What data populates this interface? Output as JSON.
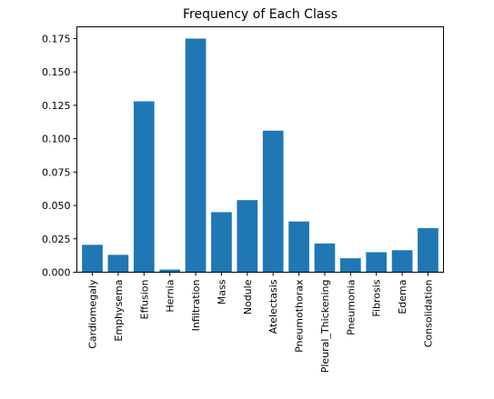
{
  "chart_data": {
    "type": "bar",
    "title": "Frequency of Each Class",
    "xlabel": "",
    "ylabel": "",
    "categories": [
      "Cardiomegaly",
      "Emphysema",
      "Effusion",
      "Hernia",
      "Infiltration",
      "Mass",
      "Nodule",
      "Atelectasis",
      "Pneumothorax",
      "Pleural_Thickening",
      "Pneumonia",
      "Fibrosis",
      "Edema",
      "Consolidation"
    ],
    "values": [
      0.0205,
      0.013,
      0.128,
      0.002,
      0.175,
      0.045,
      0.054,
      0.106,
      0.038,
      0.0215,
      0.0105,
      0.015,
      0.0165,
      0.033
    ],
    "ylim": [
      0,
      0.1838
    ],
    "yticks": [
      0.0,
      0.025,
      0.05,
      0.075,
      0.1,
      0.125,
      0.15,
      0.175
    ],
    "ytick_labels": [
      "0.000",
      "0.025",
      "0.050",
      "0.075",
      "0.100",
      "0.125",
      "0.150",
      "0.175"
    ],
    "bar_color": "#1f77b4",
    "grid": false,
    "legend": "none"
  }
}
